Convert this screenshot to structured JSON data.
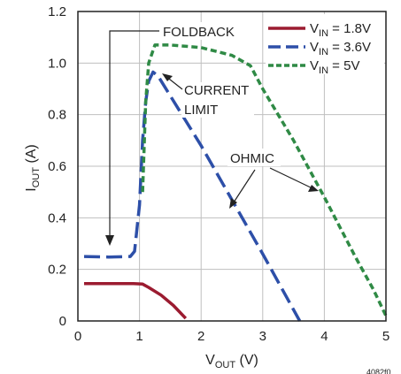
{
  "chart_data": {
    "type": "line",
    "title": "",
    "xlabel": {
      "main": "V",
      "sub": "OUT",
      "rest": " (V)"
    },
    "ylabel": {
      "main": "I",
      "sub": "OUT",
      "rest": " (A)"
    },
    "xlim": [
      0,
      5
    ],
    "ylim": [
      0,
      1.2
    ],
    "xticks": [
      "0",
      "1",
      "2",
      "3",
      "4",
      "5"
    ],
    "yticks": [
      "0",
      "0.2",
      "0.4",
      "0.6",
      "0.8",
      "1.0",
      "1.2"
    ],
    "grid": true,
    "legend_position": "top-right",
    "series": [
      {
        "name": "V_IN = 1.8V",
        "legend": {
          "main": "V",
          "sub": "IN",
          "rest": " = 1.8V"
        },
        "color": "#9b1b30",
        "dash": "solid",
        "points": [
          [
            0.1,
            0.145
          ],
          [
            0.9,
            0.145
          ],
          [
            1.05,
            0.143
          ],
          [
            1.15,
            0.13
          ],
          [
            1.35,
            0.1
          ],
          [
            1.55,
            0.06
          ],
          [
            1.75,
            0.01
          ]
        ]
      },
      {
        "name": "V_IN = 3.6V",
        "legend": {
          "main": "V",
          "sub": "IN",
          "rest": " = 3.6V"
        },
        "color": "#2d4fa8",
        "dash": "long-dash",
        "points": [
          [
            0.1,
            0.25
          ],
          [
            0.5,
            0.248
          ],
          [
            0.85,
            0.25
          ],
          [
            0.92,
            0.27
          ],
          [
            1.0,
            0.45
          ],
          [
            1.05,
            0.7
          ],
          [
            1.1,
            0.85
          ],
          [
            1.15,
            0.93
          ],
          [
            1.22,
            0.965
          ],
          [
            1.3,
            0.95
          ],
          [
            2.0,
            0.68
          ],
          [
            3.0,
            0.26
          ],
          [
            3.6,
            0.0
          ]
        ]
      },
      {
        "name": "V_IN = 5V",
        "legend": {
          "main": "V",
          "sub": "IN",
          "rest": " = 5V"
        },
        "color": "#2f8a45",
        "dash": "short-dash",
        "points": [
          [
            1.05,
            0.5
          ],
          [
            1.1,
            0.85
          ],
          [
            1.15,
            1.0
          ],
          [
            1.25,
            1.07
          ],
          [
            1.5,
            1.07
          ],
          [
            2.0,
            1.06
          ],
          [
            2.5,
            1.03
          ],
          [
            2.8,
            0.99
          ],
          [
            3.0,
            0.9
          ],
          [
            3.5,
            0.7
          ],
          [
            4.0,
            0.48
          ],
          [
            4.5,
            0.25
          ],
          [
            4.8,
            0.12
          ],
          [
            5.0,
            0.02
          ]
        ]
      }
    ],
    "annotations": [
      {
        "text": "FOLDBACK",
        "arrow_to": [
          0.5,
          0.3
        ]
      },
      {
        "text": [
          "CURRENT",
          "LIMIT"
        ],
        "arrow_to": [
          1.3,
          1.0
        ]
      },
      {
        "text": "OHMIC",
        "arrow_to": [
          [
            2.45,
            0.44
          ],
          [
            3.95,
            0.49
          ]
        ]
      }
    ],
    "footer_code": "4082f0"
  }
}
